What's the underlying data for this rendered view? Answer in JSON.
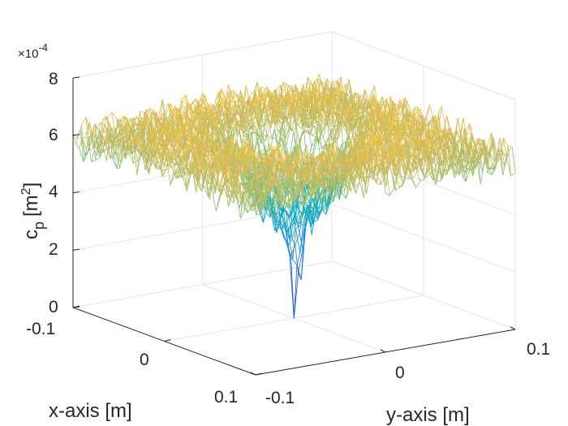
{
  "chart_data": {
    "type": "surface",
    "title": "",
    "xlabel": "x-axis [m]",
    "ylabel": "y-axis [m]",
    "zlabel_main": "c",
    "zlabel_sub": "p",
    "zlabel_units_open": "[m",
    "zlabel_units_sup": "2",
    "zlabel_units_close": "]",
    "z_multiplier_prefix": "×10",
    "z_multiplier_exponent": "-4",
    "xlim": [
      -0.1,
      0.1
    ],
    "ylim": [
      -0.1,
      0.1
    ],
    "zlim": [
      0,
      8
    ],
    "x_ticks": [
      "-0.1",
      "0",
      "0.1"
    ],
    "y_ticks": [
      "-0.1",
      "0",
      "0.1"
    ],
    "z_ticks": [
      "0",
      "2",
      "4",
      "6",
      "8"
    ],
    "surface_summary": {
      "edge_level": 5.8,
      "plateau_level": 6.8,
      "center_min": 0.0,
      "grid_on": true,
      "colormap": "parula"
    }
  }
}
